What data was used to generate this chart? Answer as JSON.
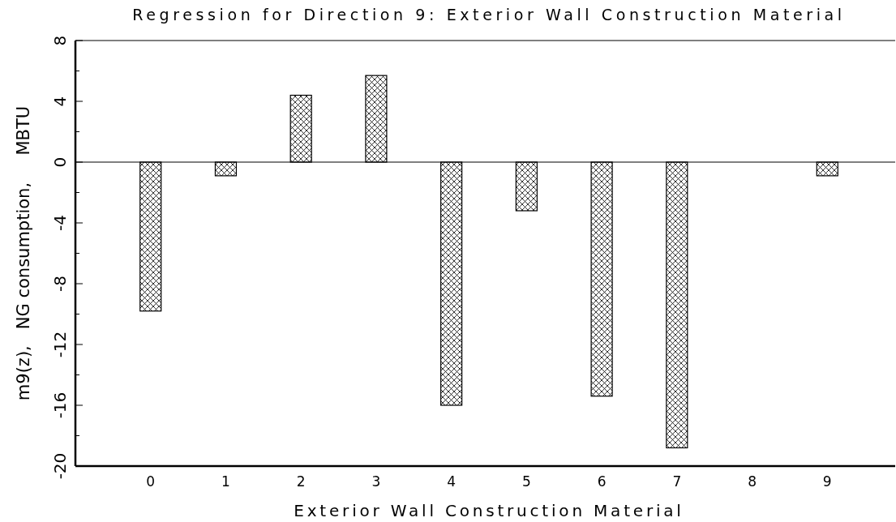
{
  "chart_data": {
    "type": "bar",
    "title": "Regression for Direction 9: Exterior Wall Construction Material",
    "xlabel": "Exterior Wall Construction Material",
    "ylabel": "m9(z),   NG consumption,     MBTU",
    "categories": [
      "0",
      "1",
      "2",
      "3",
      "4",
      "5",
      "6",
      "7",
      "8",
      "9"
    ],
    "values": [
      -9.8,
      -0.9,
      4.4,
      5.7,
      -16.0,
      -3.2,
      -15.4,
      -18.8,
      null,
      -0.9
    ],
    "color": "#000000",
    "ylim": [
      -20,
      8
    ],
    "yticks": [
      -20,
      {
        "value": -18,
        "label": null
      },
      -16,
      {
        "value": -14,
        "label": null
      },
      -12,
      {
        "value": -10,
        "label": null
      },
      -8,
      {
        "value": -6,
        "label": null
      },
      -4,
      {
        "value": -2,
        "label": null
      },
      0,
      {
        "value": 2,
        "label": null
      },
      4,
      {
        "value": 6,
        "label": null
      },
      8
    ]
  }
}
